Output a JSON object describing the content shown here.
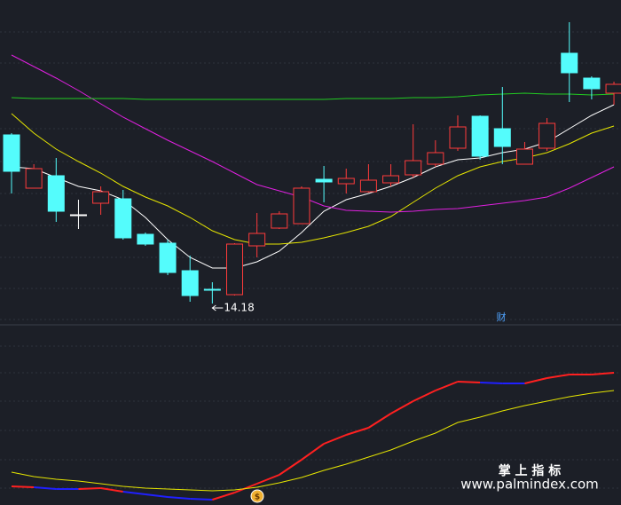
{
  "chart_data": [
    {
      "type": "candlestick",
      "open": [
        16.08,
        15.48,
        15.62,
        15.18,
        15.31,
        15.36,
        14.96,
        14.86,
        14.55,
        14.34,
        14.28,
        14.83,
        15.03,
        15.08,
        15.58,
        15.53,
        15.44,
        15.54,
        15.63,
        15.75,
        15.93,
        16.29,
        16.15,
        15.75,
        15.93,
        17.0,
        16.72,
        16.55
      ],
      "high": [
        16.1,
        15.75,
        15.82,
        15.35,
        15.5,
        15.46,
        14.98,
        14.9,
        14.72,
        14.42,
        14.86,
        15.2,
        15.22,
        15.5,
        15.73,
        15.7,
        15.75,
        15.75,
        16.2,
        16.02,
        16.3,
        16.3,
        16.62,
        16.0,
        16.27,
        17.35,
        16.74,
        16.68
      ],
      "low": [
        15.42,
        15.48,
        15.1,
        15.02,
        15.18,
        14.9,
        14.83,
        14.5,
        14.2,
        14.18,
        14.27,
        14.7,
        15.02,
        15.08,
        15.32,
        15.42,
        15.43,
        15.5,
        15.6,
        15.72,
        15.9,
        15.8,
        15.75,
        15.75,
        15.9,
        16.45,
        16.48,
        16.42
      ],
      "close": [
        15.67,
        15.7,
        15.22,
        15.18,
        15.44,
        14.92,
        14.85,
        14.53,
        14.27,
        14.33,
        14.85,
        14.97,
        15.19,
        15.48,
        15.55,
        15.59,
        15.57,
        15.62,
        15.79,
        15.88,
        16.17,
        15.84,
        15.95,
        15.92,
        16.21,
        16.78,
        16.6,
        16.65
      ],
      "up_color": "#ff3b3b",
      "down_color": "#54fcfc",
      "flat_color": "#ffffff",
      "series": [
        {
          "color": "#ffffff",
          "values": [
            15.72,
            15.7,
            15.6,
            15.5,
            15.45,
            15.35,
            15.15,
            14.9,
            14.7,
            14.58,
            14.58,
            14.65,
            14.77,
            14.98,
            15.22,
            15.35,
            15.42,
            15.5,
            15.6,
            15.72,
            15.8,
            15.82,
            15.88,
            15.92,
            16.0,
            16.15,
            16.3,
            16.42
          ]
        },
        {
          "color": "#e6e600",
          "values": [
            16.32,
            16.1,
            15.92,
            15.78,
            15.65,
            15.5,
            15.38,
            15.28,
            15.15,
            15.0,
            14.9,
            14.85,
            14.85,
            14.87,
            14.92,
            14.98,
            15.05,
            15.16,
            15.32,
            15.48,
            15.62,
            15.72,
            15.78,
            15.82,
            15.88,
            15.98,
            16.1,
            16.18
          ]
        },
        {
          "color": "#e020e0",
          "values": [
            16.98,
            16.85,
            16.72,
            16.58,
            16.43,
            16.28,
            16.15,
            16.02,
            15.9,
            15.78,
            15.65,
            15.52,
            15.45,
            15.38,
            15.28,
            15.23,
            15.22,
            15.21,
            15.22,
            15.24,
            15.25,
            15.28,
            15.31,
            15.34,
            15.38,
            15.48,
            15.6,
            15.72
          ]
        },
        {
          "color": "#22cc22",
          "values": [
            16.5,
            16.49,
            16.49,
            16.49,
            16.49,
            16.49,
            16.48,
            16.48,
            16.48,
            16.48,
            16.48,
            16.48,
            16.48,
            16.48,
            16.48,
            16.49,
            16.49,
            16.49,
            16.5,
            16.5,
            16.51,
            16.53,
            16.54,
            16.55,
            16.54,
            16.54,
            16.53,
            16.54
          ]
        }
      ],
      "ylim": [
        13.95,
        17.6
      ],
      "annotation": "14.18",
      "marker": "财"
    },
    {
      "type": "line",
      "series": [
        {
          "color": "#ff2020",
          "point_colors": [
            "#ff2020",
            "#ff2020",
            "#2020ff",
            "#2020ff",
            "#ff2020",
            "#ff2020",
            "#2020ff",
            "#2020ff",
            "#2020ff",
            "#2020ff",
            "#ff2020",
            "#ff2020",
            "#ff2020",
            "#ff2020",
            "#ff2020",
            "#ff2020",
            "#ff2020",
            "#ff2020",
            "#ff2020",
            "#ff2020",
            "#ff2020",
            "#ff2020",
            "#2020ff",
            "#2020ff",
            "#ff2020",
            "#ff2020",
            "#ff2020",
            "#ff2020"
          ],
          "values": [
            10.5,
            10,
            9,
            9,
            9.5,
            7.5,
            6,
            4.5,
            3.5,
            3,
            7,
            12,
            17,
            25.5,
            34.5,
            39.5,
            43.5,
            51.5,
            58.5,
            64.5,
            69.5,
            69,
            68.5,
            68.5,
            71.5,
            73.5,
            73.5,
            74.5
          ]
        },
        {
          "color": "#e6e600",
          "values": [
            18.5,
            16,
            14.5,
            13.5,
            12,
            10.5,
            9.5,
            9,
            8.5,
            8,
            8.5,
            10,
            12.5,
            15.5,
            19.5,
            23,
            27,
            31,
            36,
            40.5,
            46.5,
            49.5,
            53,
            56,
            58.5,
            61,
            63,
            64.5
          ]
        }
      ],
      "ylim": [
        0,
        100
      ]
    }
  ],
  "watermark": {
    "title": "掌 上 指 标",
    "url": "www.palmindex.com"
  }
}
